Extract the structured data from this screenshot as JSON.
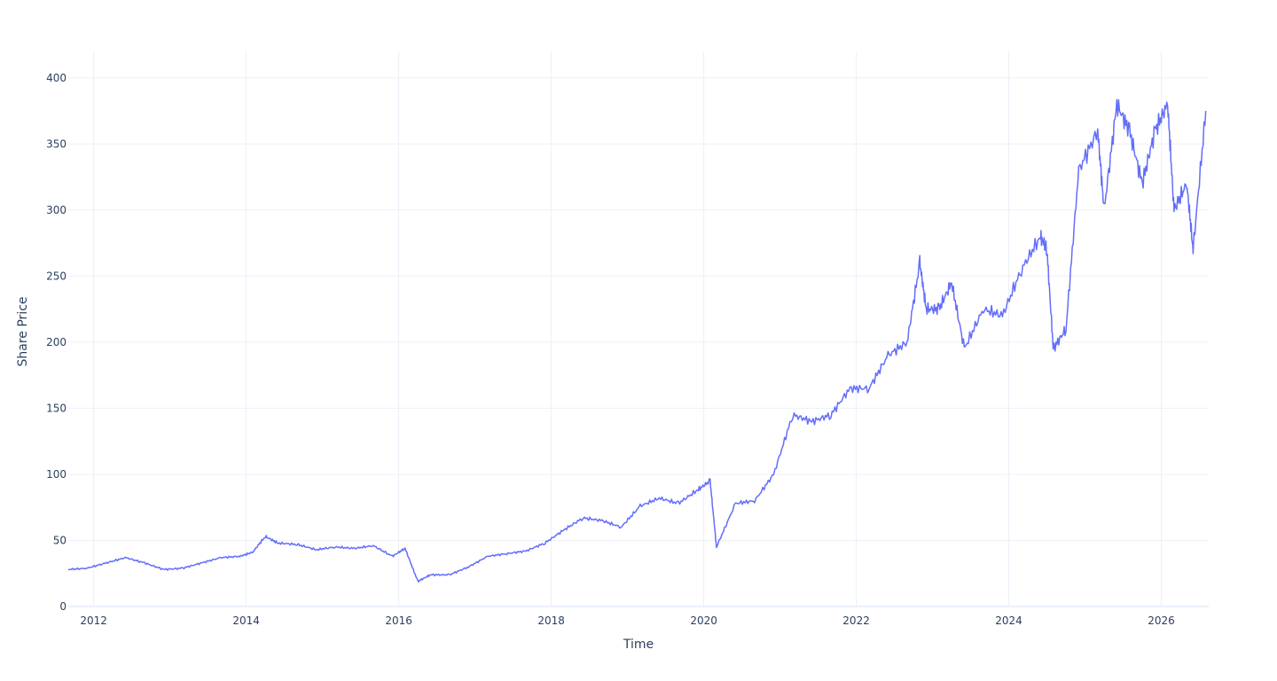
{
  "chart_data": {
    "type": "line",
    "title": "",
    "xlabel": "Time",
    "ylabel": "Share Price",
    "xlim": [
      "2011-09-01",
      "2026-08-15"
    ],
    "ylim": [
      0,
      420
    ],
    "x_ticks": [
      "2012",
      "2014",
      "2016",
      "2018",
      "2020",
      "2022",
      "2024",
      "2026"
    ],
    "y_ticks": [
      "0",
      "50",
      "100",
      "150",
      "200",
      "250",
      "300",
      "350",
      "400"
    ],
    "grid": true,
    "legend": "none",
    "line_color": "#636efa",
    "series": [
      {
        "x": [
          "2011-09",
          "2011-12",
          "2012-03",
          "2012-06",
          "2012-09",
          "2012-12",
          "2013-03",
          "2013-06",
          "2013-09",
          "2013-12",
          "2014-02",
          "2014-04",
          "2014-06",
          "2014-09",
          "2014-12",
          "2015-03",
          "2015-06",
          "2015-09",
          "2015-12",
          "2016-02",
          "2016-04",
          "2016-06",
          "2016-09",
          "2016-12",
          "2017-03",
          "2017-06",
          "2017-09",
          "2017-12",
          "2018-03",
          "2018-06",
          "2018-09",
          "2018-12",
          "2019-03",
          "2019-06",
          "2019-09",
          "2019-12",
          "2020-02",
          "2020-03",
          "2020-06",
          "2020-09",
          "2020-12",
          "2021-03",
          "2021-06",
          "2021-09",
          "2021-12",
          "2022-03",
          "2022-06",
          "2022-09",
          "2022-11",
          "2022-12",
          "2023-02",
          "2023-04",
          "2023-06",
          "2023-09",
          "2023-12",
          "2024-03",
          "2024-06",
          "2024-07",
          "2024-08",
          "2024-10",
          "2024-12",
          "2025-03",
          "2025-04",
          "2025-06",
          "2025-08",
          "2025-10",
          "2025-12",
          "2026-02",
          "2026-03",
          "2026-05",
          "2026-06",
          "2026-08"
        ],
        "y": [
          28,
          29,
          33,
          37,
          33,
          28,
          29,
          33,
          37,
          38,
          41,
          53,
          48,
          47,
          43,
          45,
          44,
          46,
          38,
          44,
          19,
          24,
          24,
          30,
          38,
          40,
          42,
          48,
          58,
          67,
          65,
          60,
          76,
          82,
          78,
          88,
          95,
          45,
          78,
          80,
          100,
          145,
          140,
          145,
          165,
          165,
          190,
          200,
          260,
          225,
          225,
          245,
          195,
          225,
          220,
          255,
          280,
          270,
          195,
          210,
          330,
          360,
          300,
          380,
          360,
          320,
          360,
          380,
          300,
          320,
          270,
          375
        ]
      }
    ]
  }
}
